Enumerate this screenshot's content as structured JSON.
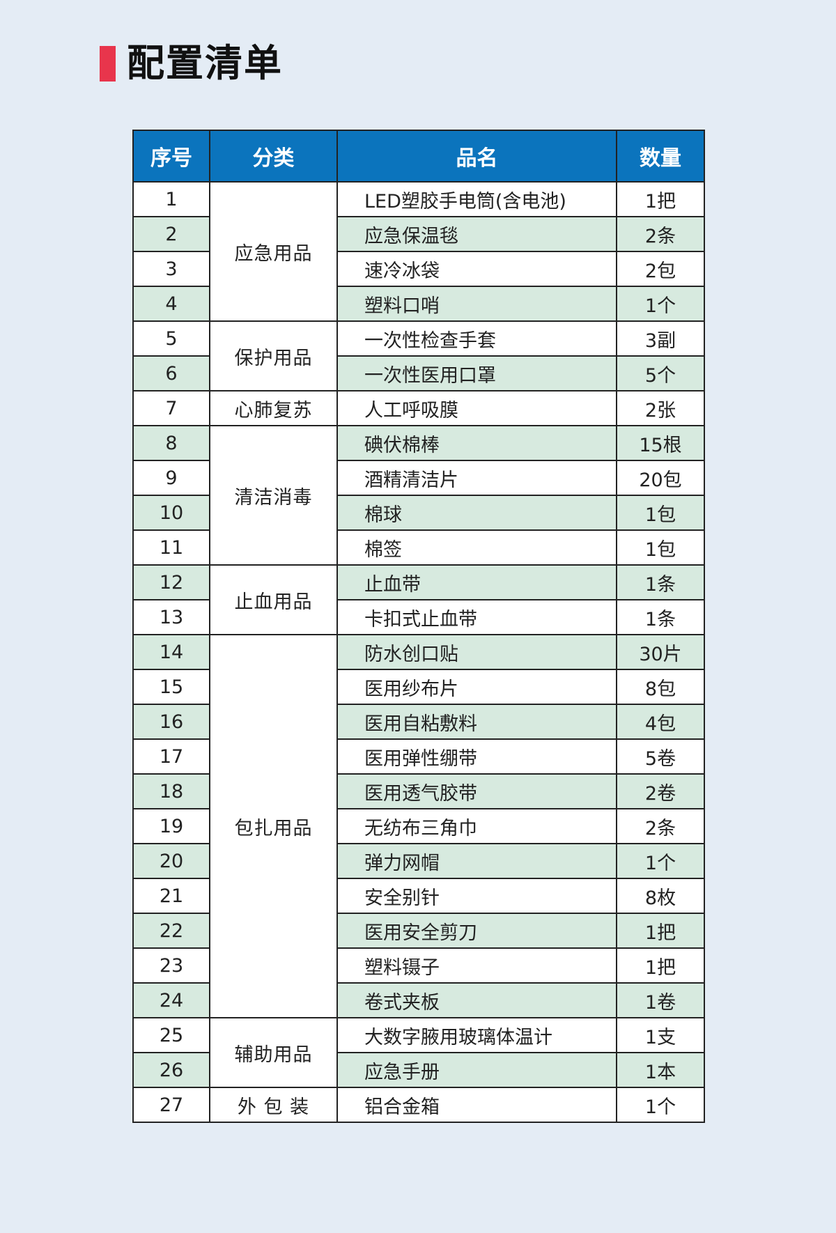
{
  "title": "配置清单",
  "colors": {
    "accent": "#e8354c",
    "header": "#0b74bd",
    "alt_row": "#d7eadf",
    "background": "#e4ecf5"
  },
  "table": {
    "headers": [
      "序号",
      "分类",
      "品名",
      "数量"
    ],
    "rows": [
      {
        "no": "1",
        "category": "应急用品",
        "span": 4,
        "name": "LED塑胶手电筒(含电池)",
        "qty": "1把"
      },
      {
        "no": "2",
        "name": "应急保温毯",
        "qty": "2条"
      },
      {
        "no": "3",
        "name": "速冷冰袋",
        "qty": "2包"
      },
      {
        "no": "4",
        "name": "塑料口哨",
        "qty": "1个"
      },
      {
        "no": "5",
        "category": "保护用品",
        "span": 2,
        "name": "一次性检查手套",
        "qty": "3副"
      },
      {
        "no": "6",
        "name": "一次性医用口罩",
        "qty": "5个"
      },
      {
        "no": "7",
        "category": "心肺复苏",
        "span": 1,
        "name": "人工呼吸膜",
        "qty": "2张"
      },
      {
        "no": "8",
        "category": "清洁消毒",
        "span": 4,
        "name": "碘伏棉棒",
        "qty": "15根"
      },
      {
        "no": "9",
        "name": "酒精清洁片",
        "qty": "20包"
      },
      {
        "no": "10",
        "name": "棉球",
        "qty": "1包"
      },
      {
        "no": "11",
        "name": "棉签",
        "qty": "1包"
      },
      {
        "no": "12",
        "category": "止血用品",
        "span": 2,
        "name": "止血带",
        "qty": "1条"
      },
      {
        "no": "13",
        "name": "卡扣式止血带",
        "qty": "1条"
      },
      {
        "no": "14",
        "category": "包扎用品",
        "span": 11,
        "name": "防水创口贴",
        "qty": "30片"
      },
      {
        "no": "15",
        "name": "医用纱布片",
        "qty": "8包"
      },
      {
        "no": "16",
        "name": "医用自粘敷料",
        "qty": "4包"
      },
      {
        "no": "17",
        "name": "医用弹性绷带",
        "qty": "5卷"
      },
      {
        "no": "18",
        "name": "医用透气胶带",
        "qty": "2卷"
      },
      {
        "no": "19",
        "name": "无纺布三角巾",
        "qty": "2条"
      },
      {
        "no": "20",
        "name": "弹力网帽",
        "qty": "1个"
      },
      {
        "no": "21",
        "name": "安全别针",
        "qty": "8枚"
      },
      {
        "no": "22",
        "name": "医用安全剪刀",
        "qty": "1把"
      },
      {
        "no": "23",
        "name": "塑料镊子",
        "qty": "1把"
      },
      {
        "no": "24",
        "name": "卷式夹板",
        "qty": "1卷"
      },
      {
        "no": "25",
        "category": "辅助用品",
        "span": 2,
        "name": "大数字腋用玻璃体温计",
        "qty": "1支"
      },
      {
        "no": "26",
        "name": "应急手册",
        "qty": "1本"
      },
      {
        "no": "27",
        "category": "外 包 装",
        "span": 1,
        "name": "铝合金箱",
        "qty": "1个"
      }
    ]
  }
}
